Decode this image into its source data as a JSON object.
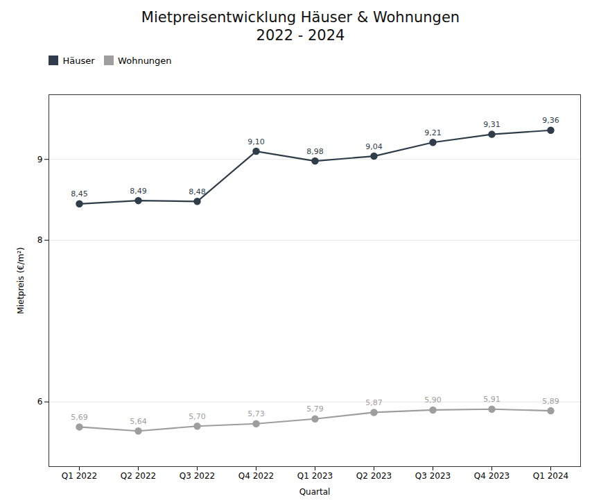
{
  "chart_data": {
    "type": "line",
    "title": "Mietpreisentwicklung Häuser & Wohnungen\n2022 - 2024",
    "xlabel": "Quartal",
    "ylabel": "Mietpreis (€/m²)",
    "categories": [
      "Q1 2022",
      "Q2 2022",
      "Q3 2022",
      "Q4 2022",
      "Q1 2023",
      "Q2 2023",
      "Q3 2023",
      "Q4 2023",
      "Q1 2024"
    ],
    "series": [
      {
        "name": "Häuser",
        "color": "#2e3d49",
        "marker": "circle",
        "values": [
          8.45,
          8.49,
          8.48,
          9.1,
          8.98,
          9.04,
          9.21,
          9.31,
          9.36
        ],
        "value_labels": [
          "8,45",
          "8,49",
          "8,48",
          "9,10",
          "8,98",
          "9,04",
          "9,21",
          "9,31",
          "9,36"
        ]
      },
      {
        "name": "Wohnungen",
        "color": "#9e9e9e",
        "marker": "circle",
        "values": [
          5.69,
          5.64,
          5.7,
          5.73,
          5.79,
          5.87,
          5.9,
          5.91,
          5.89
        ],
        "value_labels": [
          "5,69",
          "5,64",
          "5,70",
          "5,73",
          "5,79",
          "5,87",
          "5,90",
          "5,91",
          "5,89"
        ]
      }
    ],
    "ylim": [
      5.2,
      9.8
    ],
    "yticks": [
      6,
      8,
      9
    ],
    "grid": true,
    "legend": "upper left",
    "data_labels": true
  }
}
